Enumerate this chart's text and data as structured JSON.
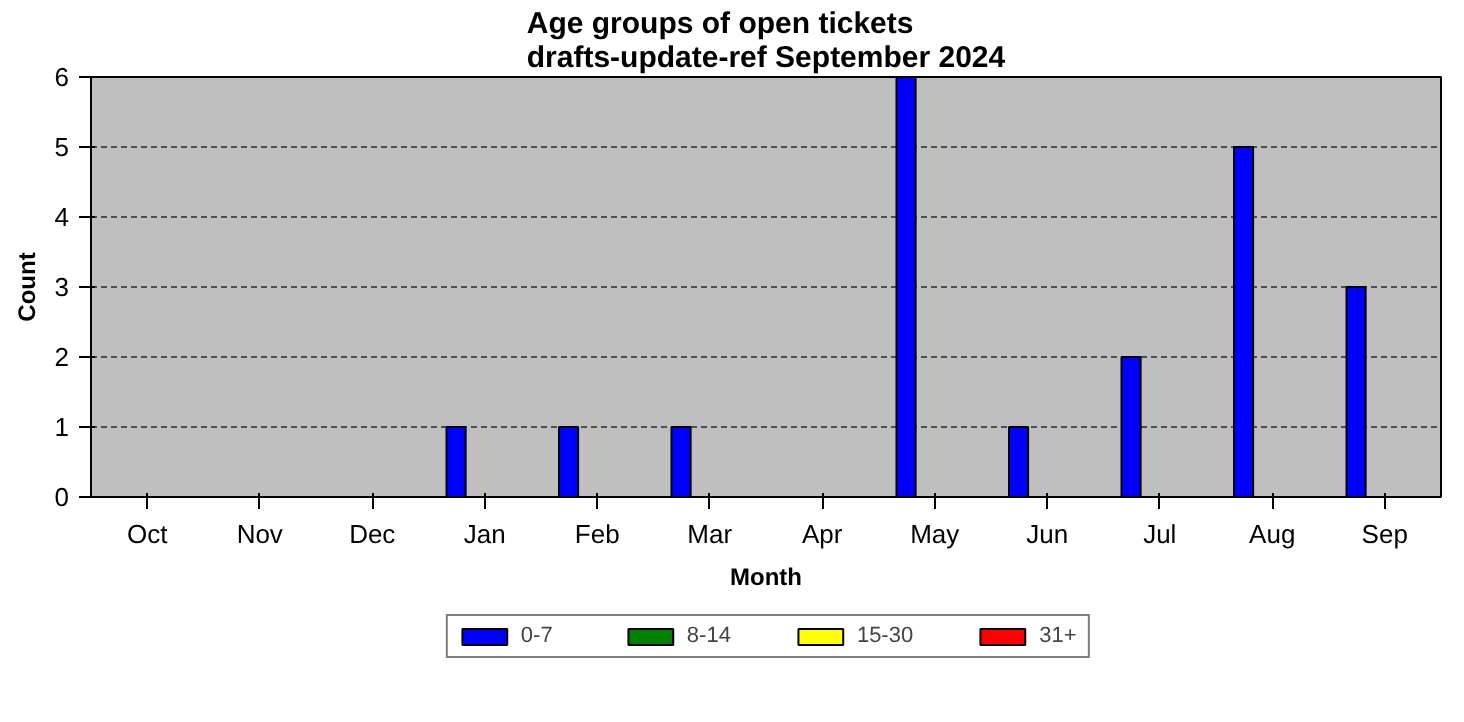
{
  "chart_data": {
    "type": "bar",
    "title": "Age groups of open tickets\ndrafts-update-ref September 2024",
    "xlabel": "Month",
    "ylabel": "Count",
    "categories": [
      "Oct",
      "Nov",
      "Dec",
      "Jan",
      "Feb",
      "Mar",
      "Apr",
      "May",
      "Jun",
      "Jul",
      "Aug",
      "Sep"
    ],
    "series": [
      {
        "name": "0-7",
        "color": "#0000ff",
        "values": [
          0,
          0,
          0,
          1,
          1,
          1,
          0,
          6,
          1,
          2,
          5,
          3
        ]
      },
      {
        "name": "8-14",
        "color": "#008000",
        "values": [
          0,
          0,
          0,
          0,
          0,
          0,
          0,
          0,
          0,
          0,
          0,
          0
        ]
      },
      {
        "name": "15-30",
        "color": "#ffff00",
        "values": [
          0,
          0,
          0,
          0,
          0,
          0,
          0,
          0,
          0,
          0,
          0,
          0
        ]
      },
      {
        "name": "31+",
        "color": "#ff0000",
        "values": [
          0,
          0,
          0,
          0,
          0,
          0,
          0,
          0,
          0,
          0,
          0,
          0
        ]
      }
    ],
    "ylim": [
      0,
      6
    ],
    "yticks": [
      0,
      1,
      2,
      3,
      4,
      5,
      6
    ],
    "grid": "y",
    "legend": "bottom"
  }
}
